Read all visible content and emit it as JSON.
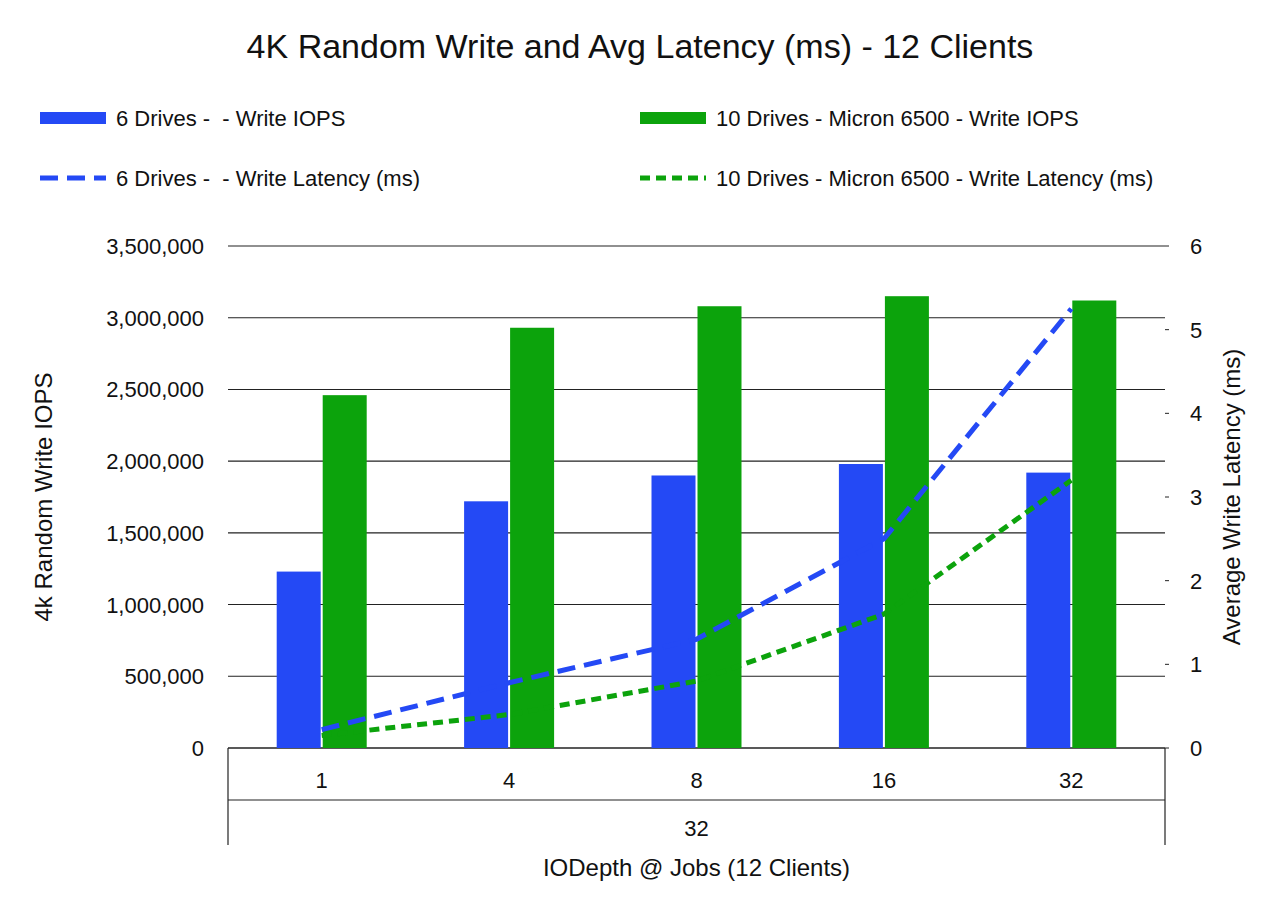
{
  "chart_data": {
    "type": "bar",
    "title": "4K Random Write and Avg Latency (ms) - 12 Clients",
    "xlabel": "IODepth @ Jobs (12 Clients)",
    "ylabel": "4k Random Write IOPS",
    "y2label": "Average Write Latency (ms)",
    "category_group": "32",
    "categories": [
      "1",
      "4",
      "8",
      "16",
      "32"
    ],
    "series": [
      {
        "name": "6 Drives -  - Write IOPS",
        "type": "bar",
        "color": "#2449f5",
        "values": [
          1230000,
          1720000,
          1900000,
          1980000,
          1920000
        ]
      },
      {
        "name": "10 Drives - Micron 6500 - Write IOPS",
        "type": "bar",
        "color": "#0ca30c",
        "values": [
          2460000,
          2930000,
          3080000,
          3150000,
          3120000
        ]
      },
      {
        "name": "6 Drives -  - Write Latency (ms)",
        "type": "line",
        "axis": "y2",
        "color": "#2449f5",
        "line_style": "long-dash",
        "values": [
          0.22,
          0.78,
          1.3,
          2.5,
          5.25
        ]
      },
      {
        "name": "10 Drives - Micron 6500 - Write Latency (ms)",
        "type": "line",
        "axis": "y2",
        "color": "#0ca30c",
        "line_style": "dash",
        "values": [
          0.15,
          0.4,
          0.8,
          1.6,
          3.2
        ]
      }
    ],
    "ylim": [
      0,
      3500000
    ],
    "yticks": [
      0,
      {
        "value": 500000,
        "label": "500,000"
      },
      {
        "value": 1000000,
        "label": "1,000,000"
      },
      {
        "value": 1500000,
        "label": "1,500,000"
      },
      {
        "value": 2000000,
        "label": "2,000,000"
      },
      {
        "value": 2500000,
        "label": "2,500,000"
      },
      {
        "value": 3000000,
        "label": "3,000,000"
      },
      {
        "value": 3500000,
        "label": "3,500,000"
      }
    ],
    "y2lim": [
      0,
      6
    ],
    "y2ticks": [
      0,
      1,
      2,
      3,
      4,
      5,
      6
    ],
    "grid": true,
    "legend": "top"
  }
}
